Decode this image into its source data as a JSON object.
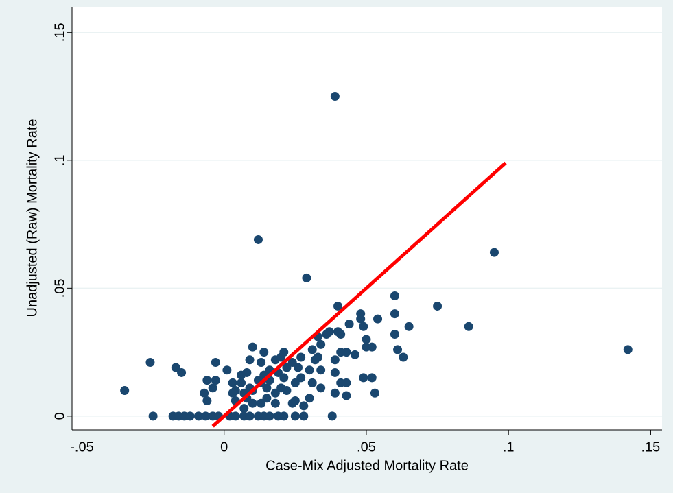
{
  "chart_data": {
    "type": "scatter",
    "x_label": "Case-Mix Adjusted Mortality Rate",
    "y_label": "Unadjusted (Raw) Mortality Rate",
    "xlim": [
      -0.0535,
      0.154
    ],
    "ylim": [
      -0.0054,
      0.16
    ],
    "xticks": [
      {
        "value": -0.05,
        "label": "-.05"
      },
      0,
      {
        "value": 0.05,
        "label": ".05"
      },
      {
        "value": 0.1,
        "label": ".1"
      },
      {
        "value": 0.15,
        "label": ".15"
      }
    ],
    "yticks": [
      0,
      {
        "value": 0.05,
        "label": ".05"
      },
      {
        "value": 0.1,
        "label": ".1"
      },
      {
        "value": 0.15,
        "label": ".15"
      }
    ],
    "grid": true,
    "series": [
      {
        "type": "scatter",
        "color": "#1a476f",
        "x": [
          -0.035,
          -0.026,
          -0.025,
          -0.017,
          -0.015,
          -0.018,
          -0.016,
          -0.014,
          -0.012,
          -0.009,
          -0.0065,
          -0.004,
          -0.002,
          0.002,
          0.004,
          0.007,
          0.009,
          0.012,
          0.014,
          0.016,
          0.019,
          0.021,
          0.025,
          0.028,
          0.038,
          -0.003,
          0.001,
          -0.007,
          -0.006,
          -0.006,
          -0.003,
          -0.004,
          0.012,
          0.029,
          0.039,
          0.095,
          0.142,
          0.086,
          0.075,
          0.065,
          0.06,
          0.06,
          0.06,
          0.061,
          0.063,
          0.054,
          0.04,
          0.048,
          0.048,
          0.049,
          0.05,
          0.05,
          0.052,
          0.052,
          0.053,
          0.049,
          0.044,
          0.041,
          0.04,
          0.037,
          0.036,
          0.033,
          0.031,
          0.041,
          0.043,
          0.046,
          0.039,
          0.039,
          0.039,
          0.041,
          0.043,
          0.043,
          0.01,
          0.018,
          0.022,
          0.027,
          0.016,
          0.02,
          0.013,
          0.008,
          0.006,
          0.015,
          0.018,
          0.022,
          0.025,
          0.03,
          0.033,
          0.034,
          0.032,
          0.027,
          0.03,
          0.034,
          0.028,
          0.024,
          0.004,
          0.007,
          0.009,
          0.012,
          0.014,
          0.009,
          0.014,
          0.021,
          0.003,
          0.013,
          0.018,
          0.025,
          0.031,
          0.034,
          0.004,
          0.008,
          0.01,
          0.013,
          0.016,
          0.019,
          0.021,
          0.024,
          0.026,
          0.02,
          0.015,
          0.01,
          0.007,
          0.006,
          0.003
        ],
        "values": [
          0.01,
          0.021,
          0,
          0.019,
          0.017,
          0,
          0,
          0,
          0,
          0,
          0,
          0,
          0,
          0,
          0,
          0,
          0,
          0,
          0,
          0,
          0,
          0,
          0,
          0,
          0,
          0.021,
          0.018,
          0.009,
          0.006,
          0.014,
          0.014,
          0.011,
          0.069,
          0.054,
          0.125,
          0.064,
          0.026,
          0.035,
          0.043,
          0.035,
          0.047,
          0.04,
          0.032,
          0.026,
          0.023,
          0.038,
          0.043,
          0.04,
          0.038,
          0.035,
          0.03,
          0.027,
          0.027,
          0.015,
          0.009,
          0.015,
          0.036,
          0.032,
          0.033,
          0.033,
          0.032,
          0.031,
          0.026,
          0.025,
          0.025,
          0.024,
          0.022,
          0.017,
          0.009,
          0.013,
          0.013,
          0.008,
          0.027,
          0.022,
          0.019,
          0.015,
          0.018,
          0.023,
          0.021,
          0.017,
          0.013,
          0.011,
          0.009,
          0.01,
          0.013,
          0.018,
          0.023,
          0.028,
          0.022,
          0.023,
          0.007,
          0.011,
          0.004,
          0.005,
          0.006,
          0.009,
          0.011,
          0.014,
          0.016,
          0.022,
          0.025,
          0.025,
          0.009,
          0.005,
          0.005,
          0.006,
          0.013,
          0.018,
          0.01,
          0.007,
          0.01,
          0.013,
          0.014,
          0.017,
          0.015,
          0.021,
          0.019,
          0.011,
          0.007,
          0.005,
          0.003,
          0.016,
          0.013
        ]
      },
      {
        "type": "line",
        "color": "#ff0000",
        "x": [
          -0.004,
          0.099
        ],
        "values": [
          -0.004,
          0.099
        ]
      }
    ]
  }
}
